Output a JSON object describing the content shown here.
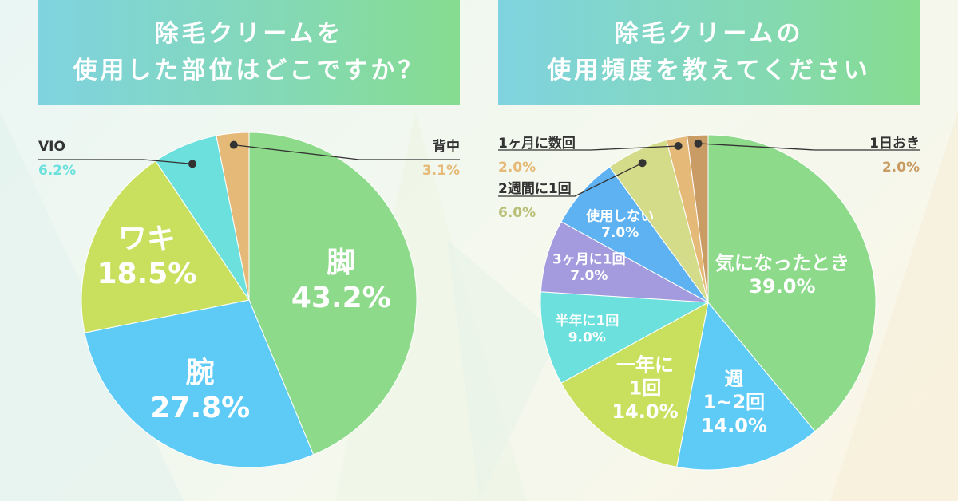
{
  "colors": {
    "leg": "#8ddb8a",
    "arm": "#5ecbf7",
    "waki": "#c9e05f",
    "vio": "#6be0dd",
    "back": "#e5b978",
    "whenever": "#8ddb8a",
    "weekly": "#5ecbf7",
    "yearly": "#c9e05f",
    "halfyear": "#6be0dd",
    "quarterly": "#a49bdf",
    "notuse": "#5eb2f2",
    "biweekly": "#d4dc8a",
    "monthly": "#e5b978",
    "alternate": "#c99c66",
    "leader": "#333333"
  },
  "chart_data": [
    {
      "type": "pie",
      "title": [
        "除毛クリームを",
        "使用した部位はどこですか？"
      ],
      "slices": [
        {
          "label": "脚",
          "value": 43.2,
          "value_label": "43.2%",
          "color_key": "leg"
        },
        {
          "label": "腕",
          "value": 27.8,
          "value_label": "27.8%",
          "color_key": "arm"
        },
        {
          "label": "ワキ",
          "value": 18.5,
          "value_label": "18.5%",
          "color_key": "waki"
        },
        {
          "label": "VIO",
          "value": 6.2,
          "value_label": "6.2%",
          "color_key": "vio"
        },
        {
          "label": "背中",
          "value": 3.1,
          "value_label": "3.1%",
          "color_key": "back"
        }
      ]
    },
    {
      "type": "pie",
      "title": [
        "除毛クリームの",
        "使用頻度を教えてください"
      ],
      "slices": [
        {
          "label": "気になったとき",
          "value": 39.0,
          "value_label": "39.0%",
          "color_key": "whenever"
        },
        {
          "label": "週 1~2回",
          "value": 14.0,
          "value_label": "14.0%",
          "color_key": "weekly"
        },
        {
          "label": "一年に 1回",
          "value": 14.0,
          "value_label": "14.0%",
          "color_key": "yearly"
        },
        {
          "label": "半年に1回",
          "value": 9.0,
          "value_label": "9.0%",
          "color_key": "halfyear"
        },
        {
          "label": "3ヶ月に1回",
          "value": 7.0,
          "value_label": "7.0%",
          "color_key": "quarterly"
        },
        {
          "label": "使用しない",
          "value": 7.0,
          "value_label": "7.0%",
          "color_key": "notuse"
        },
        {
          "label": "2週間に1回",
          "value": 6.0,
          "value_label": "6.0%",
          "color_key": "biweekly"
        },
        {
          "label": "1ヶ月に数回",
          "value": 2.0,
          "value_label": "2.0%",
          "color_key": "monthly"
        },
        {
          "label": "1日おき",
          "value": 2.0,
          "value_label": "2.0%",
          "color_key": "alternate"
        }
      ]
    }
  ]
}
